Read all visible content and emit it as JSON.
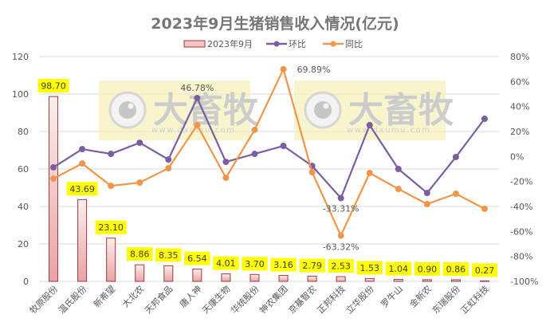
{
  "chart_data": {
    "type": "bar+line",
    "title": "2023年9月生猪销售收入情况(亿元)",
    "categories": [
      "牧原股份",
      "温氏股份",
      "新希望",
      "大北农",
      "天邦食品",
      "唐人神",
      "天康生物",
      "华统股份",
      "神农集团",
      "京基智农",
      "正邦科技",
      "立华股份",
      "罗牛山",
      "金新农",
      "东瑞股份",
      "正虹科技"
    ],
    "series": [
      {
        "name": "2023年9月",
        "type": "bar",
        "axis": "left",
        "color": "#f2c4c4",
        "border": "#9b3b3b",
        "values": [
          98.7,
          43.69,
          23.1,
          8.86,
          8.35,
          6.54,
          4.01,
          3.7,
          3.16,
          2.79,
          2.53,
          1.53,
          1.04,
          0.9,
          0.86,
          0.27
        ],
        "labels": [
          "98.70",
          "43.69",
          "23.10",
          "8.86",
          "8.35",
          "6.54",
          "4.01",
          "3.70",
          "3.16",
          "2.79",
          "2.53",
          "1.53",
          "1.04",
          "0.90",
          "0.86",
          "0.27"
        ]
      },
      {
        "name": "环比",
        "type": "line",
        "axis": "right",
        "unit": "%",
        "color": "#7b5ea1",
        "values": [
          -8.7,
          5.9,
          2.1,
          11.0,
          -2.4,
          46.78,
          -4.3,
          2.1,
          8.5,
          -7.5,
          -33.31,
          25.1,
          -10.0,
          -29.2,
          -0.4,
          30.2
        ],
        "annotations": [
          {
            "index": 5,
            "text": "46.78%"
          },
          {
            "index": 10,
            "text": "-33.31%"
          }
        ]
      },
      {
        "name": "同比",
        "type": "line",
        "axis": "right",
        "unit": "%",
        "color": "#f0954a",
        "values": [
          -17.7,
          -5.6,
          -23.5,
          -20.9,
          -9.4,
          25.1,
          -17.0,
          21.3,
          69.89,
          -12.6,
          -63.32,
          -13.2,
          -26.0,
          -38.1,
          -29.8,
          -41.9
        ],
        "annotations": [
          {
            "index": 8,
            "text": "69.89%"
          },
          {
            "index": 10,
            "text": "-63.32%"
          }
        ]
      }
    ],
    "left_axis": {
      "min": 0,
      "max": 120,
      "step": 20,
      "ticks": [
        "0",
        "20",
        "40",
        "60",
        "80",
        "100",
        "120"
      ]
    },
    "right_axis": {
      "min": -100,
      "max": 80,
      "step": 20,
      "ticks": [
        "-100%",
        "-80%",
        "-60%",
        "-40%",
        "-20%",
        "0%",
        "20%",
        "40%",
        "60%",
        "80%"
      ]
    },
    "grid": true,
    "legend_position": "top",
    "label_highlight_color": "#ffff00"
  },
  "legend": {
    "bar_label": "2023年9月",
    "line1_label": "环比",
    "line2_label": "同比"
  },
  "watermark": {
    "brand": "大畜牧",
    "url": "www.dxumu.com"
  }
}
